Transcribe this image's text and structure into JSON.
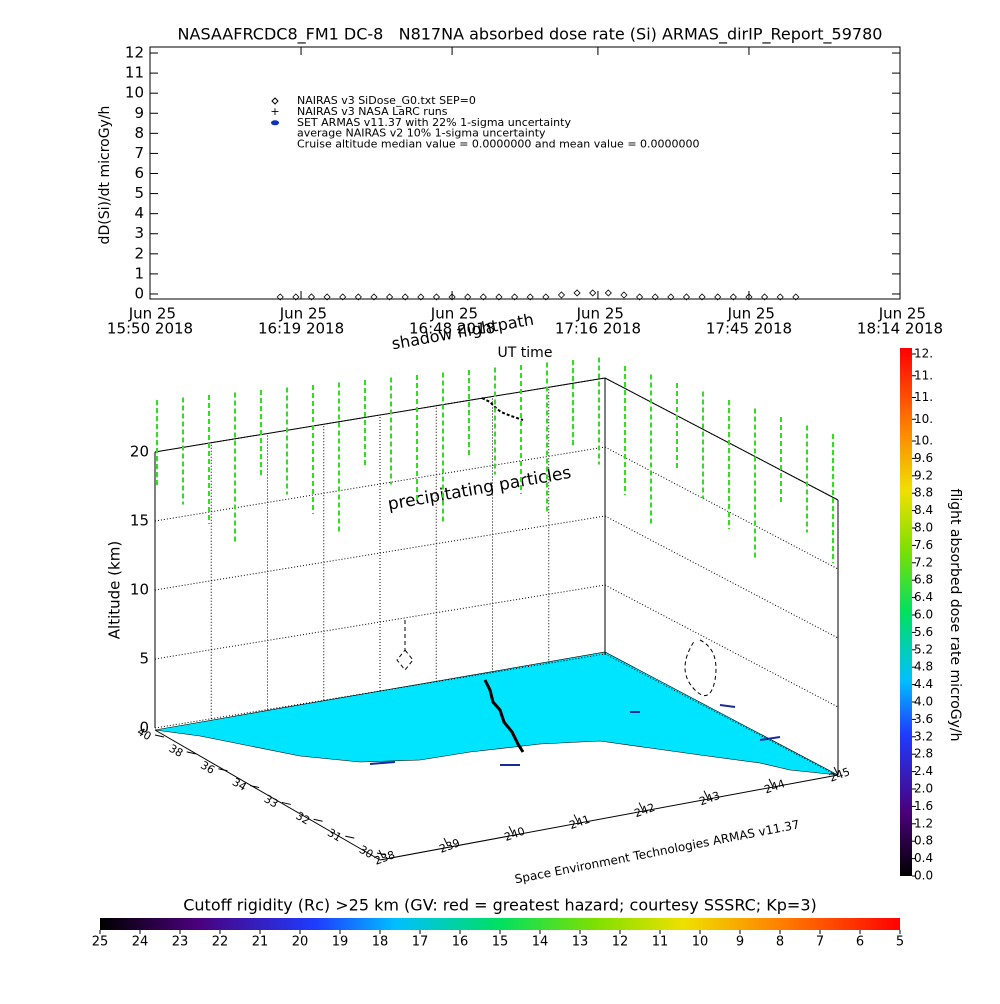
{
  "chart_data": [
    {
      "type": "line",
      "title": "NASAAFRCDC8_FM1 DC-8   N817NA absorbed dose rate (Si) ARMAS_dirIP_Report_59780",
      "ylabel": "dD(Si)/dt microGy/h",
      "xlabel": "UT time",
      "x": [
        "2018-06-25 16:15",
        "2018-06-25 16:18",
        "2018-06-25 16:21",
        "2018-06-25 16:24",
        "2018-06-25 16:27",
        "2018-06-25 16:30",
        "2018-06-25 16:33",
        "2018-06-25 16:36",
        "2018-06-25 16:39",
        "2018-06-25 16:42",
        "2018-06-25 16:45",
        "2018-06-25 16:48",
        "2018-06-25 16:51",
        "2018-06-25 16:54",
        "2018-06-25 16:57",
        "2018-06-25 17:00",
        "2018-06-25 17:03",
        "2018-06-25 17:06",
        "2018-06-25 17:09",
        "2018-06-25 17:12",
        "2018-06-25 17:15",
        "2018-06-25 17:18",
        "2018-06-25 17:21",
        "2018-06-25 17:24",
        "2018-06-25 17:27",
        "2018-06-25 17:30",
        "2018-06-25 17:33",
        "2018-06-25 17:36",
        "2018-06-25 17:39",
        "2018-06-25 17:42",
        "2018-06-25 17:45",
        "2018-06-25 17:48",
        "2018-06-25 17:51",
        "2018-06-25 17:54"
      ],
      "series": [
        {
          "name": "NAIRAS v3 SiDose_G0.txt SEP=0",
          "color": "#000000",
          "values": [
            0,
            0,
            0,
            0,
            0,
            0,
            0,
            0,
            0,
            0,
            0,
            0,
            0,
            0,
            0,
            0,
            0,
            0,
            0.1,
            0.2,
            0.2,
            0.2,
            0.1,
            0,
            0,
            0,
            0,
            0,
            0,
            0,
            0,
            0,
            0,
            0
          ]
        }
      ],
      "annotations": [
        "NAIRAS v3 NASA LaRC runs",
        "SET ARMAS v11.37 with 22% 1-sigma uncertainty",
        "average NAIRAS v2 10% 1-sigma uncertainty",
        "Cruise altitude median value = 0.0000000 and mean value = 0.0000000"
      ],
      "xlim": [
        "2018-06-25 15:50",
        "2018-06-25 18:14"
      ],
      "xticks": [
        {
          "value": "2018-06-25 15:50",
          "label": [
            "Jun 25",
            "15:50 2018"
          ]
        },
        {
          "value": "2018-06-25 16:19",
          "label": [
            "Jun 25",
            "16:19 2018"
          ]
        },
        {
          "value": "2018-06-25 16:48",
          "label": [
            "Jun 25",
            "16:48 2018"
          ]
        },
        {
          "value": "2018-06-25 17:16",
          "label": [
            "Jun 25",
            "17:16 2018"
          ]
        },
        {
          "value": "2018-06-25 17:45",
          "label": [
            "Jun 25",
            "17:45 2018"
          ]
        },
        {
          "value": "2018-06-25 18:14",
          "label": [
            "Jun 25",
            "18:14 2018"
          ]
        }
      ],
      "ylim": [
        -0.25,
        12.3
      ],
      "yticks": [
        0,
        1,
        2,
        3,
        4,
        5,
        6,
        7,
        8,
        9,
        10,
        11,
        12
      ]
    },
    {
      "type": "surface3d",
      "zlabel": "Altitude (km)",
      "zticks": [
        0,
        5,
        10,
        15,
        20
      ],
      "latticks": [
        40,
        38,
        36,
        34,
        33,
        32,
        31,
        30
      ],
      "lonticks": [
        238,
        239,
        240,
        241,
        242,
        243,
        244,
        245
      ],
      "annotations": [
        "shadow flightpath",
        "precipitating particles",
        "Space Environment Technologies ARMAS v11.37"
      ]
    },
    {
      "type": "colorbar",
      "label": "flight absorbed dose rate microGy/h",
      "lim": [
        0,
        12
      ],
      "ticks": [
        {
          "value": 0,
          "label": "0.0"
        },
        0.4,
        0.8,
        1.2,
        1.6,
        {
          "value": 2,
          "label": "2.0"
        },
        2.4,
        2.8,
        3.2,
        3.6,
        {
          "value": 4,
          "label": "4.0"
        },
        4.4,
        4.8,
        5.2,
        5.6,
        {
          "value": 6,
          "label": "6.0"
        },
        6.4,
        6.8,
        7.2,
        7.6,
        {
          "value": 8,
          "label": "8.0"
        },
        8.4,
        8.8,
        9.2,
        9.6,
        {
          "value": 10,
          "label": "10."
        },
        {
          "value": 10.5,
          "label": "10."
        },
        {
          "value": 11,
          "label": "11."
        },
        {
          "value": 11.5,
          "label": "11."
        },
        {
          "value": 12,
          "label": "12."
        }
      ]
    },
    {
      "type": "colorbar",
      "label": "Cutoff rigidity (Rc) >25 km (GV: red = greatest hazard; courtesy SSSRC; Kp=3)",
      "lim": [
        25,
        5
      ],
      "ticks": [
        25,
        24,
        23,
        22,
        21,
        20,
        19,
        18,
        17,
        16,
        15,
        14,
        13,
        12,
        11,
        10,
        9,
        8,
        7,
        6,
        5
      ]
    }
  ]
}
